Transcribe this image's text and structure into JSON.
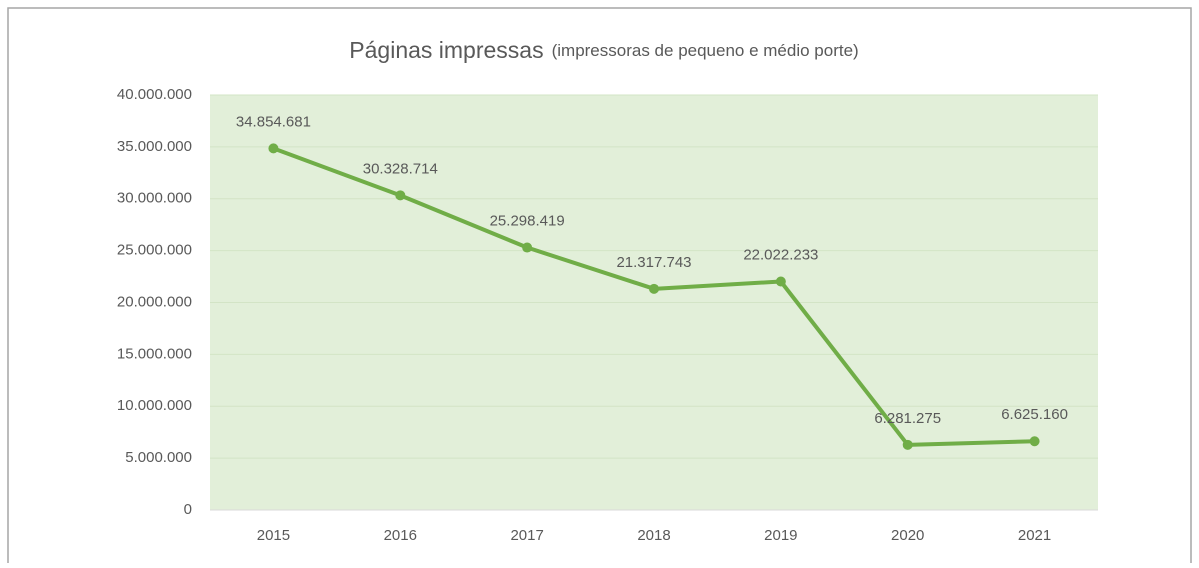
{
  "chart_data": {
    "type": "line",
    "title": "Páginas impressas",
    "subtitle": "(impressoras de pequeno e médio porte)",
    "categories": [
      "2015",
      "2016",
      "2017",
      "2018",
      "2019",
      "2020",
      "2021"
    ],
    "values": [
      34854681,
      30328714,
      25298419,
      21317743,
      22022233,
      6281275,
      6625160
    ],
    "value_labels": [
      "34.854.681",
      "30.328.714",
      "25.298.419",
      "21.317.743",
      "22.022.233",
      "6.281.275",
      "6.625.160"
    ],
    "color": "#70ad47",
    "background": "#e2efd9",
    "ylim": [
      0,
      40000000
    ],
    "yticks": [
      0,
      {
        "value": 5000000,
        "label": "5.000.000"
      },
      {
        "value": 10000000,
        "label": "10.000.000"
      },
      {
        "value": 15000000,
        "label": "15.000.000"
      },
      {
        "value": 20000000,
        "label": "20.000.000"
      },
      {
        "value": 25000000,
        "label": "25.000.000"
      },
      {
        "value": 30000000,
        "label": "30.000.000"
      },
      {
        "value": 35000000,
        "label": "35.000.000"
      },
      {
        "value": 40000000,
        "label": "40.000.000"
      }
    ],
    "grid": true
  }
}
